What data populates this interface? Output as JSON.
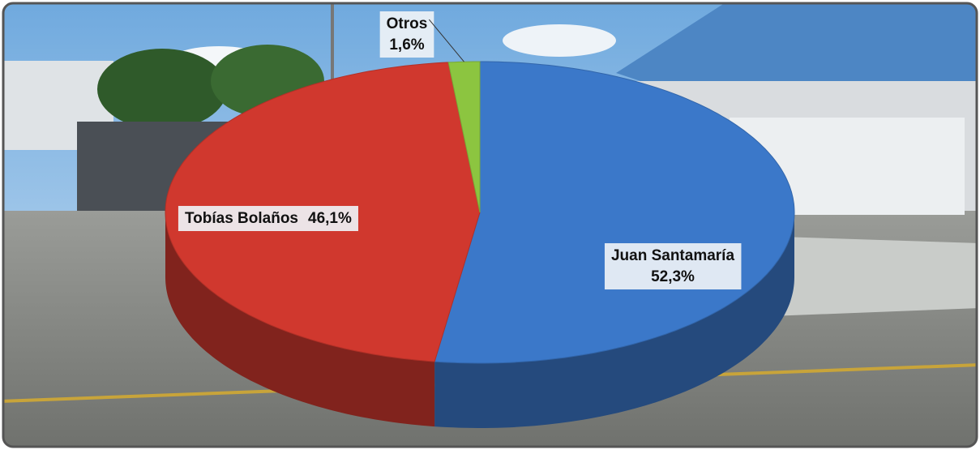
{
  "chart_data": {
    "type": "pie3d",
    "categories": [
      "Juan Santamaría",
      "Tobías Bolaños",
      "Otros"
    ],
    "values": [
      52.3,
      46.1,
      1.6
    ],
    "value_labels": [
      "52,3%",
      "46,1%",
      "1,6%"
    ],
    "colors": [
      "#3b78c9",
      "#d0382e",
      "#8cc540"
    ]
  }
}
